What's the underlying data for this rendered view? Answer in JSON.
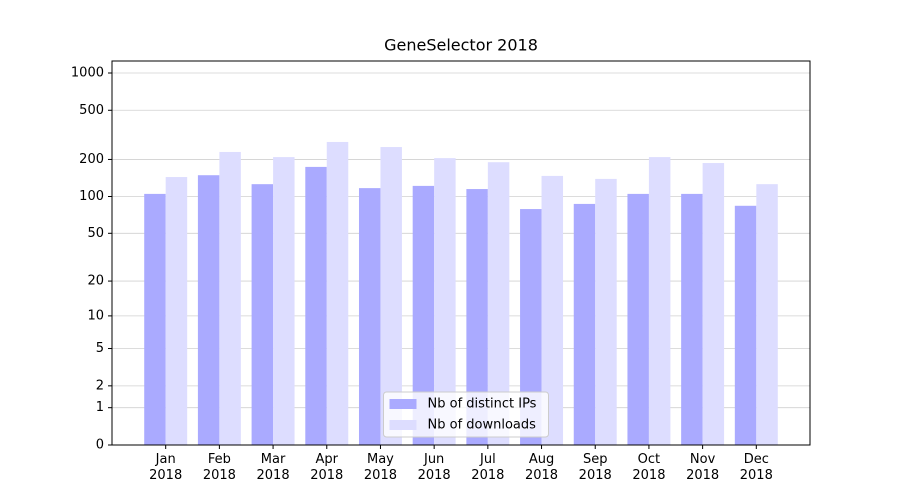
{
  "chart_data": {
    "type": "bar",
    "title": "GeneSelector 2018",
    "categories": [
      "Jan\n2018",
      "Feb\n2018",
      "Mar\n2018",
      "Apr\n2018",
      "May\n2018",
      "Jun\n2018",
      "Jul\n2018",
      "Aug\n2018",
      "Sep\n2018",
      "Oct\n2018",
      "Nov\n2018",
      "Dec\n2018"
    ],
    "series": [
      {
        "name": "Nb of distinct IPs",
        "color": "#aaaaff",
        "values": [
          105,
          149,
          126,
          174,
          117,
          122,
          115,
          79,
          87,
          105,
          105,
          84
        ]
      },
      {
        "name": "Nb of downloads",
        "color": "#ddddff",
        "values": [
          144,
          230,
          209,
          277,
          252,
          205,
          190,
          147,
          139,
          209,
          187,
          126
        ]
      }
    ],
    "yscale": "log1p",
    "ylim": [
      0,
      1250
    ],
    "yticks": [
      0,
      1,
      2,
      5,
      10,
      20,
      50,
      100,
      200,
      500,
      1000
    ],
    "grid": true,
    "legend": "lower center"
  }
}
